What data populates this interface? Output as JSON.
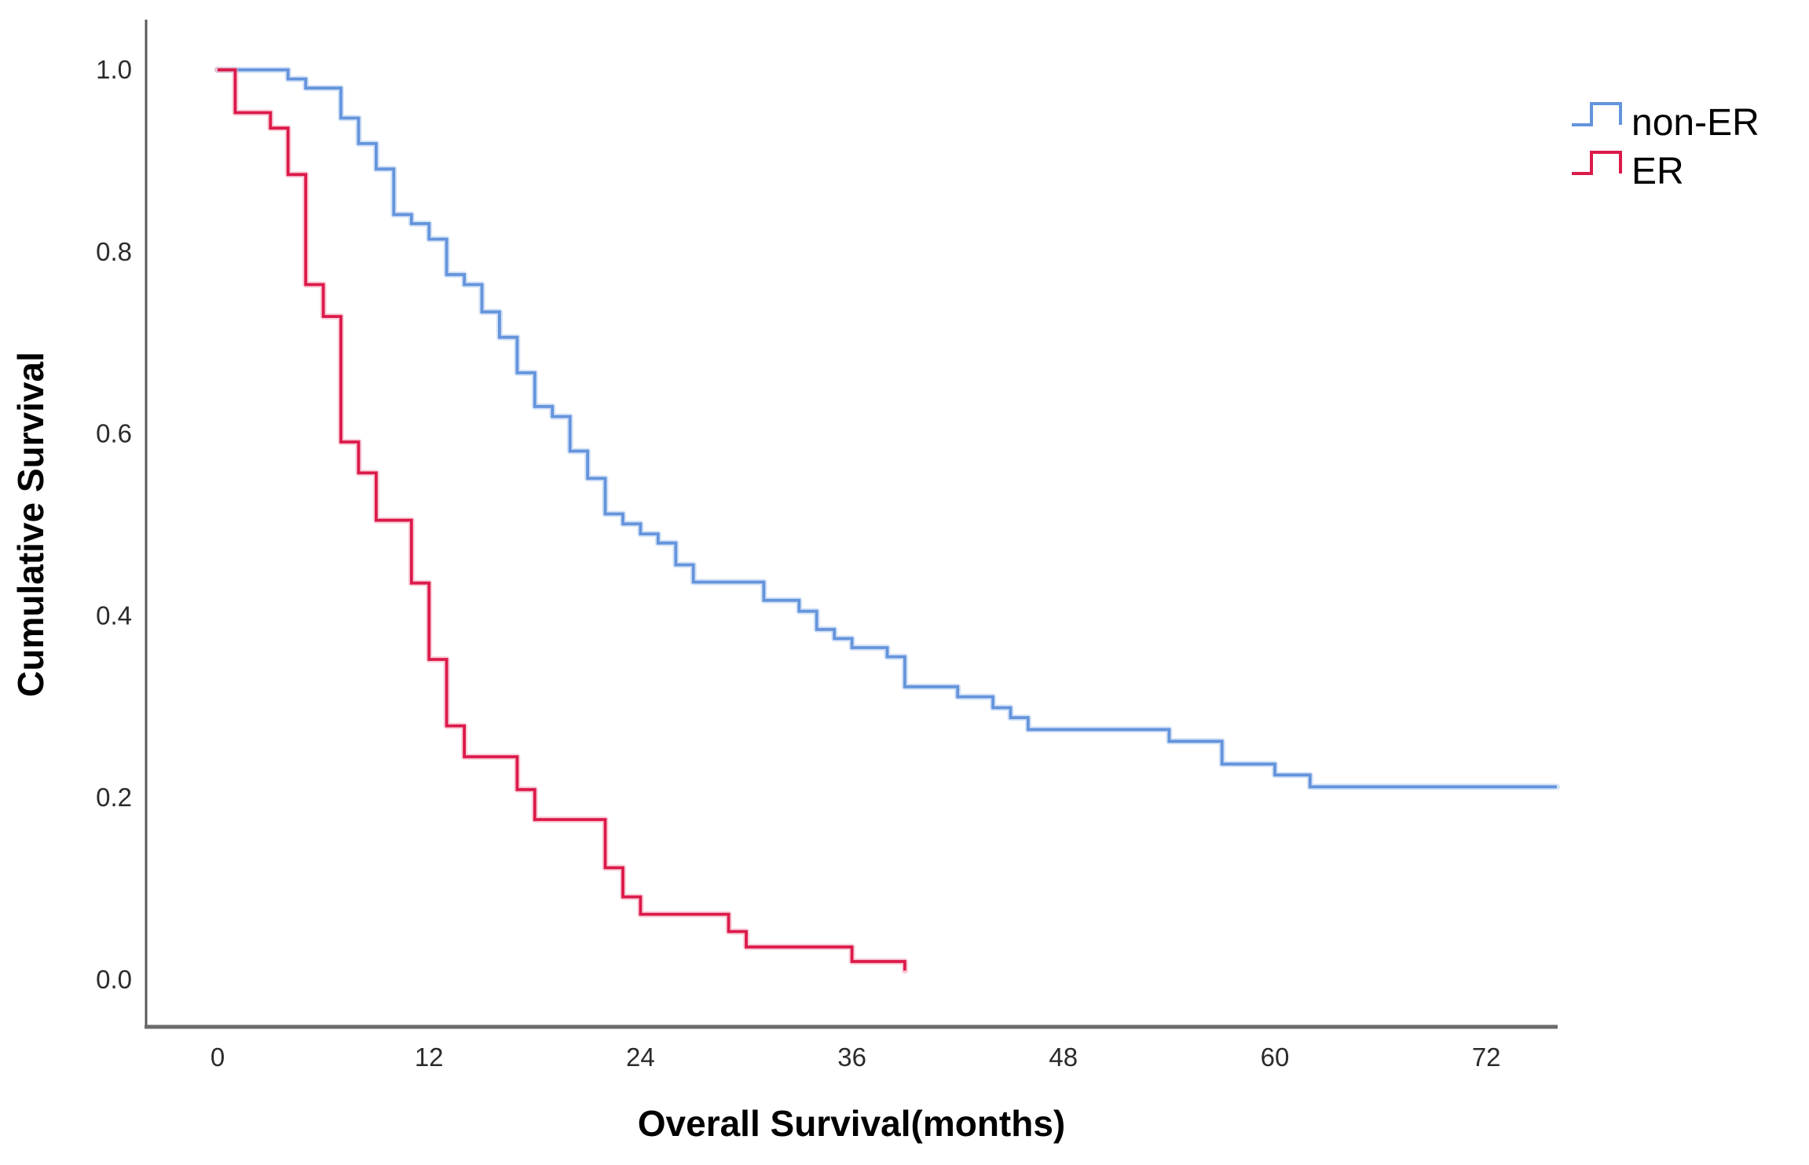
{
  "page": {
    "background": "#ffffff",
    "description": "Kaplan-Meier cumulative survival plot comparing non-ER and ER groups"
  },
  "chart_data": {
    "type": "line",
    "subtype": "kaplan-meier-step",
    "title": "",
    "xlabel": "Overall Survival(months)",
    "ylabel": "Cumulative Survival",
    "x_ticks": [
      0,
      12,
      24,
      36,
      48,
      60,
      72
    ],
    "y_ticks": [
      {
        "value": 1.0,
        "label": "1.0"
      },
      {
        "value": 0.8,
        "label": "0.8"
      },
      {
        "value": 0.6,
        "label": "0.6"
      },
      {
        "value": 0.4,
        "label": "0.4"
      },
      {
        "value": 0.2,
        "label": "0.2"
      },
      {
        "value": 0.0,
        "label": "0.0"
      }
    ],
    "xlim": [
      -4.1,
      76.1
    ],
    "ylim": [
      0,
      1.05
    ],
    "grid": false,
    "legend_position": "top-right",
    "axis_color": "#5a5a5a",
    "series": [
      {
        "name": "non-ER",
        "color": "#6494DC",
        "halo_color": "#AFCBEF",
        "end_month": 76,
        "points": [
          [
            0,
            1.0
          ],
          [
            4,
            0.99
          ],
          [
            5,
            0.98
          ],
          [
            7,
            0.947
          ],
          [
            8,
            0.919
          ],
          [
            9,
            0.891
          ],
          [
            10,
            0.841
          ],
          [
            11,
            0.831
          ],
          [
            12,
            0.814
          ],
          [
            13,
            0.775
          ],
          [
            14,
            0.764
          ],
          [
            15,
            0.734
          ],
          [
            16,
            0.706
          ],
          [
            17,
            0.667
          ],
          [
            18,
            0.63
          ],
          [
            19,
            0.619
          ],
          [
            20,
            0.581
          ],
          [
            21,
            0.551
          ],
          [
            22,
            0.512
          ],
          [
            23,
            0.501
          ],
          [
            24,
            0.49
          ],
          [
            25,
            0.48
          ],
          [
            26,
            0.456
          ],
          [
            27,
            0.437
          ],
          [
            31,
            0.417
          ],
          [
            33,
            0.405
          ],
          [
            34,
            0.385
          ],
          [
            35,
            0.375
          ],
          [
            36,
            0.365
          ],
          [
            38,
            0.355
          ],
          [
            39,
            0.322
          ],
          [
            42,
            0.311
          ],
          [
            44,
            0.299
          ],
          [
            45,
            0.288
          ],
          [
            46,
            0.275
          ],
          [
            54,
            0.262
          ],
          [
            57,
            0.237
          ],
          [
            60,
            0.225
          ],
          [
            62,
            0.212
          ]
        ]
      },
      {
        "name": "ER",
        "color": "#DC1A4A",
        "halo_color": "#F3A8BB",
        "end_month": 39,
        "points": [
          [
            0,
            1.0
          ],
          [
            1,
            0.953
          ],
          [
            3,
            0.936
          ],
          [
            4,
            0.885
          ],
          [
            5,
            0.764
          ],
          [
            6,
            0.729
          ],
          [
            7,
            0.591
          ],
          [
            8,
            0.557
          ],
          [
            9,
            0.505
          ],
          [
            11,
            0.436
          ],
          [
            12,
            0.352
          ],
          [
            13,
            0.279
          ],
          [
            14,
            0.245
          ],
          [
            17,
            0.209
          ],
          [
            18,
            0.176
          ],
          [
            22,
            0.123
          ],
          [
            23,
            0.091
          ],
          [
            24,
            0.072
          ],
          [
            29,
            0.053
          ],
          [
            30,
            0.036
          ],
          [
            36,
            0.02
          ],
          [
            39,
            0.01
          ]
        ]
      }
    ]
  }
}
